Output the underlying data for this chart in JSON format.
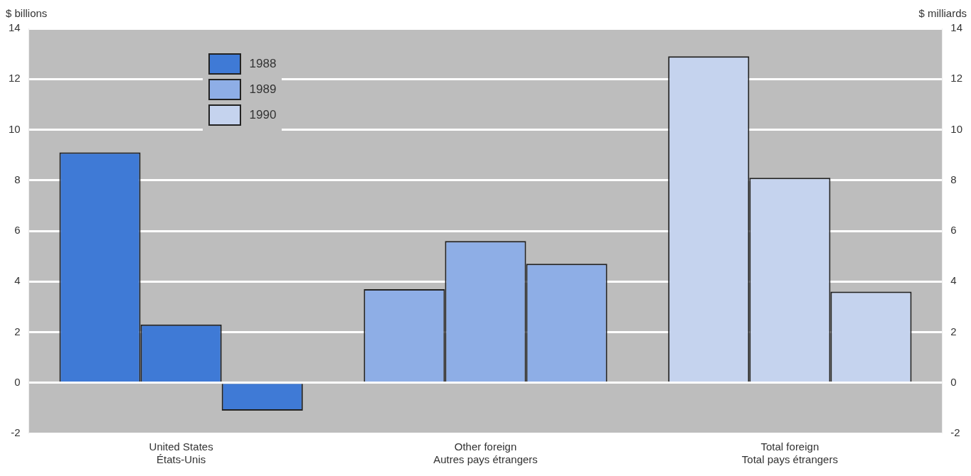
{
  "chart_data": {
    "type": "bar",
    "ylabel": "$ billions",
    "y2label": "$ milliards",
    "categories": [
      "United States\nÉtats-Unis",
      "Other foreign\nAutres pays étrangers",
      "Total foreign\nTotal pays étrangers"
    ],
    "series": [
      {
        "name": "1988",
        "color": "#3f7ad6",
        "colors": [
          "#3f7ad6",
          "#8eaee6",
          "#c5d3ee"
        ],
        "values": [
          9.1,
          3.7,
          12.9
        ]
      },
      {
        "name": "1989",
        "color": "#8eaee6",
        "colors": [
          "#3f7ad6",
          "#8eaee6",
          "#c5d3ee"
        ],
        "values": [
          2.3,
          5.6,
          8.1
        ]
      },
      {
        "name": "1990",
        "color": "#c5d3ee",
        "colors": [
          "#3f7ad6",
          "#8eaee6",
          "#c5d3ee"
        ],
        "values": [
          -1.1,
          4.7,
          3.6
        ]
      }
    ],
    "ylim": [
      -2,
      14
    ],
    "yticks": [
      -2,
      0,
      2,
      4,
      6,
      8,
      10,
      12,
      14
    ],
    "y2lim": [
      -2,
      14
    ],
    "y2ticks": [
      -2,
      0,
      2,
      4,
      6,
      8,
      10,
      12,
      14
    ],
    "grid": "y",
    "legend": "top left"
  }
}
